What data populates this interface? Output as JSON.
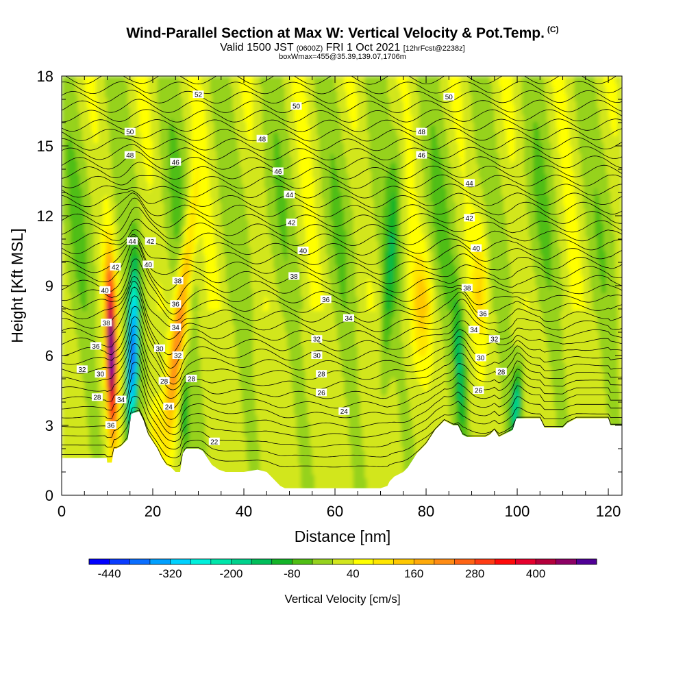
{
  "header": {
    "title": "Wind-Parallel Section at Max W: Vertical Velocity & Pot.Temp.",
    "copyright": "(C)",
    "valid_main": "Valid 1500 JST",
    "valid_utc": "(0600Z)",
    "valid_date": "FRI 1 Oct 2021",
    "forecast": "[12hrFcst@2238z]",
    "boxinfo": "boxWmax=455@35.39,139.07,1706m"
  },
  "chart_data": {
    "type": "heatmap",
    "xlabel": "Distance [nm]",
    "ylabel": "Height [Kft MSL]",
    "xlim": [
      0,
      123
    ],
    "ylim": [
      0,
      18
    ],
    "xticks": [
      0,
      20,
      40,
      60,
      80,
      100,
      120
    ],
    "yticks": [
      0,
      3,
      6,
      9,
      12,
      15,
      18
    ],
    "colorbar": {
      "label": "Vertical Velocity [cm/s]",
      "min": -480,
      "max": 520,
      "step": 40,
      "tick_labels": [
        "-440",
        "-320",
        "-200",
        "-80",
        "40",
        "160",
        "280",
        "400"
      ],
      "colors": [
        "#0000ff",
        "#0a3cff",
        "#0a6eff",
        "#00a0ff",
        "#00d2ff",
        "#00f0dc",
        "#00e6aa",
        "#00d28c",
        "#00be5a",
        "#14b428",
        "#50be14",
        "#96d21e",
        "#d2e61e",
        "#ffff00",
        "#ffe600",
        "#ffc800",
        "#ffaa0a",
        "#ff8c14",
        "#ff6414",
        "#ff3c14",
        "#ff0a0a",
        "#e6002d",
        "#b4003c",
        "#8c0064",
        "#500096"
      ]
    },
    "contour_labels": [
      {
        "label": "52",
        "x": 30,
        "y": 17.2
      },
      {
        "label": "50",
        "x": 51.5,
        "y": 16.7
      },
      {
        "label": "50",
        "x": 85,
        "y": 17.1
      },
      {
        "label": "50",
        "x": 15,
        "y": 15.6
      },
      {
        "label": "48",
        "x": 44,
        "y": 15.3
      },
      {
        "label": "48",
        "x": 79,
        "y": 15.6
      },
      {
        "label": "48",
        "x": 15,
        "y": 14.6
      },
      {
        "label": "46",
        "x": 25,
        "y": 14.3
      },
      {
        "label": "46",
        "x": 47.5,
        "y": 13.9
      },
      {
        "label": "46",
        "x": 79,
        "y": 14.6
      },
      {
        "label": "44",
        "x": 50,
        "y": 12.9
      },
      {
        "label": "44",
        "x": 89.5,
        "y": 13.4
      },
      {
        "label": "42",
        "x": 50.5,
        "y": 11.7
      },
      {
        "label": "42",
        "x": 89.5,
        "y": 11.9
      },
      {
        "label": "44",
        "x": 15.5,
        "y": 10.9
      },
      {
        "label": "42",
        "x": 19.5,
        "y": 10.9
      },
      {
        "label": "42",
        "x": 11.8,
        "y": 9.8
      },
      {
        "label": "40",
        "x": 19,
        "y": 9.9
      },
      {
        "label": "40",
        "x": 53,
        "y": 10.5
      },
      {
        "label": "40",
        "x": 91,
        "y": 10.6
      },
      {
        "label": "38",
        "x": 25.5,
        "y": 9.2
      },
      {
        "label": "38",
        "x": 51,
        "y": 9.4
      },
      {
        "label": "38",
        "x": 89,
        "y": 8.9
      },
      {
        "label": "40",
        "x": 9.5,
        "y": 8.8
      },
      {
        "label": "36",
        "x": 25,
        "y": 8.2
      },
      {
        "label": "36",
        "x": 58,
        "y": 8.4
      },
      {
        "label": "36",
        "x": 92.5,
        "y": 7.8
      },
      {
        "label": "34",
        "x": 63,
        "y": 7.6
      },
      {
        "label": "38",
        "x": 9.8,
        "y": 7.4
      },
      {
        "label": "34",
        "x": 25,
        "y": 7.2
      },
      {
        "label": "34",
        "x": 90.5,
        "y": 7.1
      },
      {
        "label": "32",
        "x": 56,
        "y": 6.7
      },
      {
        "label": "32",
        "x": 95,
        "y": 6.7
      },
      {
        "label": "36",
        "x": 7.5,
        "y": 6.4
      },
      {
        "label": "30",
        "x": 21.5,
        "y": 6.3
      },
      {
        "label": "32",
        "x": 25.5,
        "y": 6.0
      },
      {
        "label": "30",
        "x": 56,
        "y": 6.0
      },
      {
        "label": "30",
        "x": 92,
        "y": 5.9
      },
      {
        "label": "32",
        "x": 4.5,
        "y": 5.4
      },
      {
        "label": "30",
        "x": 8.5,
        "y": 5.2
      },
      {
        "label": "28",
        "x": 57,
        "y": 5.2
      },
      {
        "label": "28",
        "x": 96.5,
        "y": 5.3
      },
      {
        "label": "28",
        "x": 22.5,
        "y": 4.9
      },
      {
        "label": "28",
        "x": 28.5,
        "y": 5.0
      },
      {
        "label": "26",
        "x": 57,
        "y": 4.4
      },
      {
        "label": "26",
        "x": 91.5,
        "y": 4.5
      },
      {
        "label": "28",
        "x": 7.8,
        "y": 4.2
      },
      {
        "label": "34",
        "x": 13,
        "y": 4.1
      },
      {
        "label": "24",
        "x": 23.5,
        "y": 3.8
      },
      {
        "label": "24",
        "x": 62,
        "y": 3.6
      },
      {
        "label": "36",
        "x": 10.8,
        "y": 3.0
      },
      {
        "label": "22",
        "x": 33.5,
        "y": 2.3
      }
    ]
  }
}
